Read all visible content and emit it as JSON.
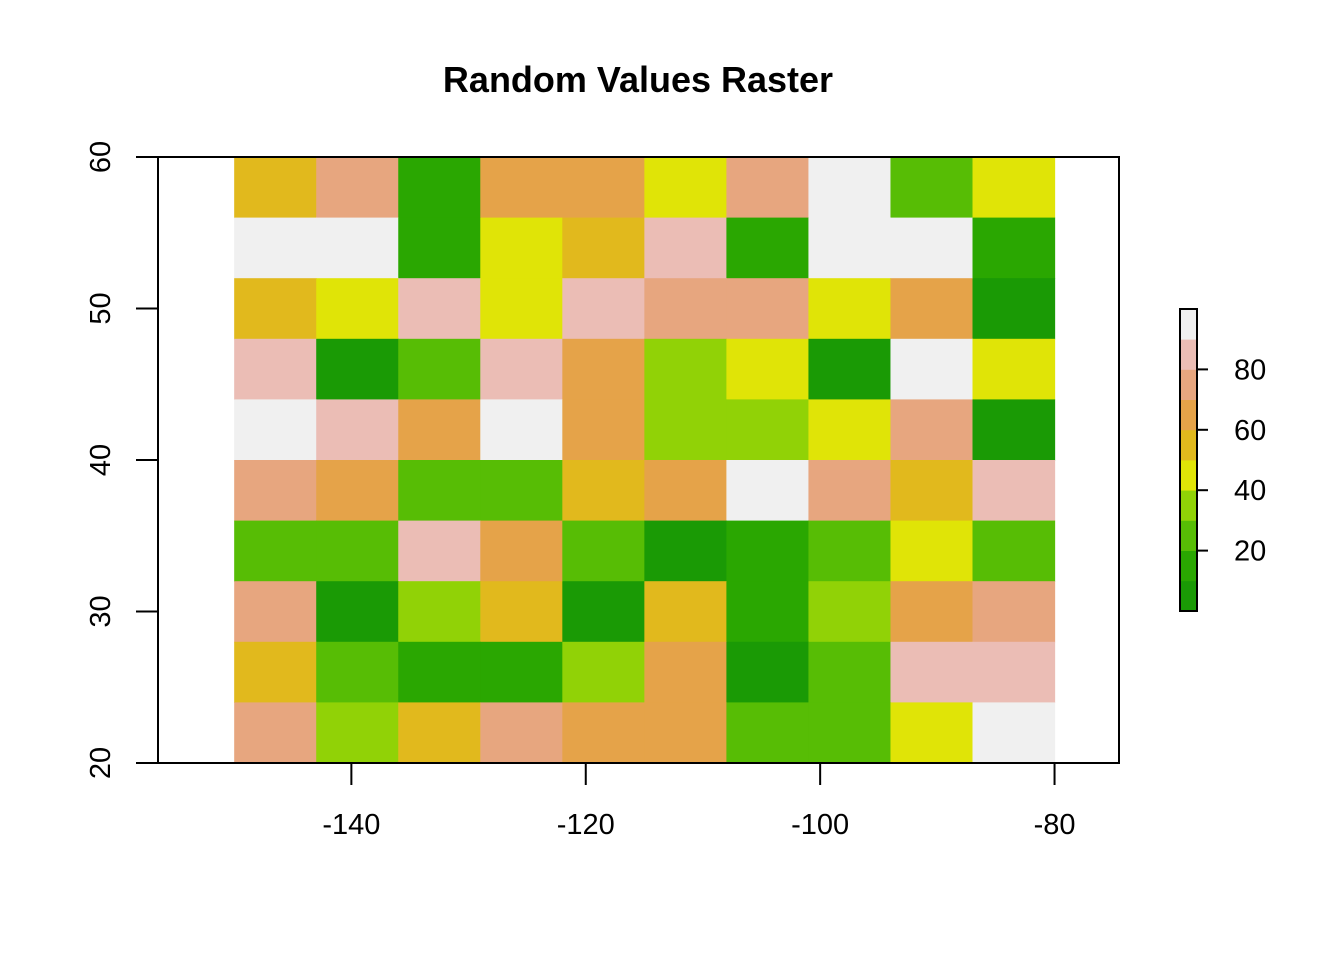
{
  "chart_data": {
    "type": "heatmap",
    "title": "Random Values Raster",
    "xlabel": "",
    "ylabel": "",
    "xlim": [
      -156.5,
      -74.5
    ],
    "ylim": [
      20,
      60
    ],
    "xticks": [
      -140,
      -120,
      -100,
      -80
    ],
    "yticks": [
      20,
      30,
      40,
      50,
      60
    ],
    "grid": false,
    "legend_position": "right",
    "raster": {
      "xmin": -150,
      "xmax": -80,
      "ymin": 20,
      "ymax": 60,
      "ncol": 10,
      "nrow": 10
    },
    "legend_scale": {
      "min": 0,
      "max": 100,
      "breaks": [
        0,
        10,
        20,
        30,
        40,
        50,
        60,
        70,
        80,
        90,
        100
      ],
      "colors": [
        "#1a9a05",
        "#2aa701",
        "#57bd05",
        "#91d206",
        "#e0e407",
        "#e1b91d",
        "#e5a349",
        "#e7a67f",
        "#ebbdb5",
        "#f0f0f0"
      ],
      "ticks": [
        20,
        40,
        60,
        80
      ]
    },
    "values": [
      [
        55,
        75,
        15,
        65,
        65,
        45,
        75,
        95,
        25,
        45
      ],
      [
        95,
        95,
        15,
        45,
        55,
        85,
        15,
        95,
        95,
        15
      ],
      [
        55,
        45,
        85,
        45,
        85,
        75,
        75,
        45,
        65,
        5
      ],
      [
        85,
        5,
        25,
        85,
        65,
        35,
        45,
        5,
        95,
        45
      ],
      [
        95,
        85,
        65,
        95,
        65,
        35,
        35,
        45,
        75,
        5
      ],
      [
        75,
        65,
        25,
        25,
        55,
        65,
        95,
        75,
        55,
        85
      ],
      [
        25,
        25,
        85,
        65,
        25,
        5,
        15,
        25,
        45,
        25
      ],
      [
        75,
        5,
        35,
        55,
        5,
        55,
        15,
        35,
        65,
        75
      ],
      [
        55,
        25,
        15,
        15,
        35,
        65,
        5,
        25,
        85,
        85
      ],
      [
        75,
        35,
        55,
        75,
        65,
        65,
        25,
        25,
        45,
        95
      ]
    ]
  }
}
